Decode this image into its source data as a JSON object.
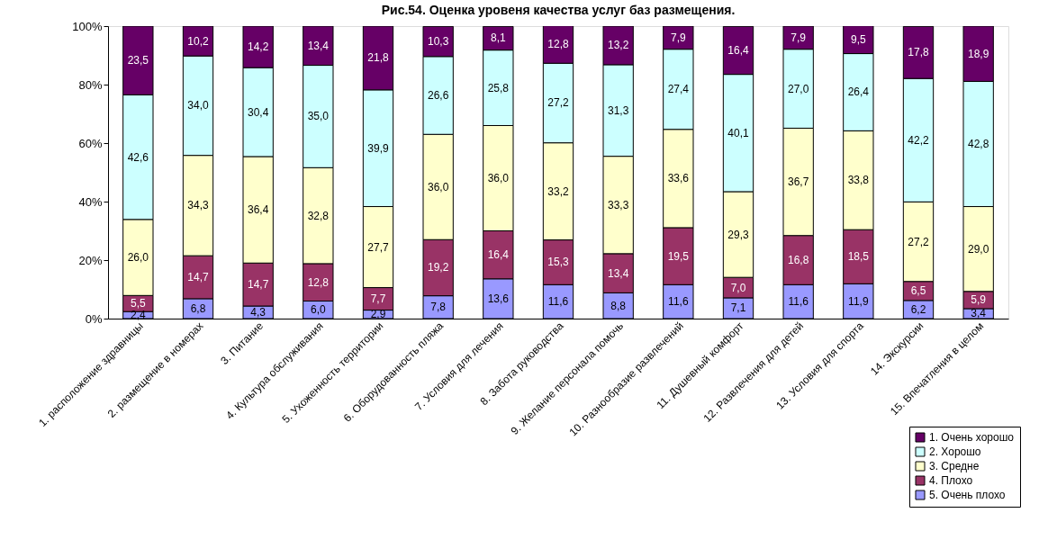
{
  "chart_data": {
    "type": "bar",
    "stacked": true,
    "title": "Рис.54.  Оценка уровеня качества услуг баз размещения.",
    "categories": [
      "1. расположение здравницы",
      "2. размещение в номерах",
      "3. Питание",
      "4. Культура обслуживания",
      "5. Ухоженность территории",
      "6. Оборудованность пляжа",
      "7. Условия для лечения",
      "8. Забота руководства",
      "9. Желание персонала помочь",
      "10. Разнообразие развлечений",
      "11. Душевный комфорт",
      "12. Развлечения для детей",
      "13. Условия для спорта",
      "14. Экскурсии",
      "15. Впечатления в целом"
    ],
    "series": [
      {
        "name": "5. Очень плохо",
        "color": "#9999ff",
        "values": [
          2.4,
          6.8,
          4.3,
          6.0,
          2.9,
          7.8,
          13.6,
          11.6,
          8.8,
          11.6,
          7.1,
          11.6,
          11.9,
          6.2,
          3.4
        ],
        "value_labels": [
          "2,4",
          "6,8",
          "4,3",
          "6,0",
          "2,9",
          "7,8",
          "13,6",
          "11,6",
          "8,8",
          "11,6",
          "7,1",
          "11,6",
          "11,9",
          "6,2",
          "3,4"
        ]
      },
      {
        "name": "4. Плохо",
        "color": "#993366",
        "values": [
          5.5,
          14.7,
          14.7,
          12.8,
          7.7,
          19.2,
          16.4,
          15.3,
          13.4,
          19.5,
          7.0,
          16.8,
          18.5,
          6.5,
          5.9
        ],
        "value_labels": [
          "5,5",
          "14,7",
          "14,7",
          "12,8",
          "7,7",
          "19,2",
          "16,4",
          "15,3",
          "13,4",
          "19,5",
          "7,0",
          "16,8",
          "18,5",
          "6,5",
          "5,9"
        ]
      },
      {
        "name": "3. Средне",
        "color": "#ffffcc",
        "values": [
          26.0,
          34.3,
          36.4,
          32.8,
          27.7,
          36.0,
          36.0,
          33.2,
          33.3,
          33.6,
          29.3,
          36.7,
          33.8,
          27.2,
          29.0
        ],
        "value_labels": [
          "26,0",
          "34,3",
          "36,4",
          "32,8",
          "27,7",
          "36,0",
          "36,0",
          "33,2",
          "33,3",
          "33,6",
          "29,3",
          "36,7",
          "33,8",
          "27,2",
          "29,0"
        ]
      },
      {
        "name": "2. Хорошо",
        "color": "#ccffff",
        "values": [
          42.6,
          34.0,
          30.4,
          35.0,
          39.9,
          26.6,
          25.8,
          27.2,
          31.3,
          27.4,
          40.1,
          27.0,
          26.4,
          42.2,
          42.8
        ],
        "value_labels": [
          "42,6",
          "34,0",
          "30,4",
          "35,0",
          "39,9",
          "26,6",
          "25,8",
          "27,2",
          "31,3",
          "27,4",
          "40,1",
          "27,0",
          "26,4",
          "42,2",
          "42,8"
        ]
      },
      {
        "name": "1. Очень хорошо",
        "color": "#660066",
        "values": [
          23.5,
          10.2,
          14.2,
          13.4,
          21.8,
          10.3,
          8.1,
          12.8,
          13.2,
          7.9,
          16.4,
          7.9,
          9.5,
          17.8,
          18.9
        ],
        "value_labels": [
          "23,5",
          "10,2",
          "14,2",
          "13,4",
          "21,8",
          "10,3",
          "8,1",
          "12,8",
          "13,2",
          "7,9",
          "16,4",
          "7,9",
          "9,5",
          "17,8",
          "18,9"
        ]
      }
    ],
    "ylim": [
      0,
      100
    ],
    "yticks": [
      {
        "value": 0,
        "label": "0%"
      },
      {
        "value": 20,
        "label": "20%"
      },
      {
        "value": 40,
        "label": "40%"
      },
      {
        "value": 60,
        "label": "60%"
      },
      {
        "value": 80,
        "label": "80%"
      },
      {
        "value": 100,
        "label": "100%"
      }
    ],
    "grid": false,
    "legend": "bottom right"
  }
}
